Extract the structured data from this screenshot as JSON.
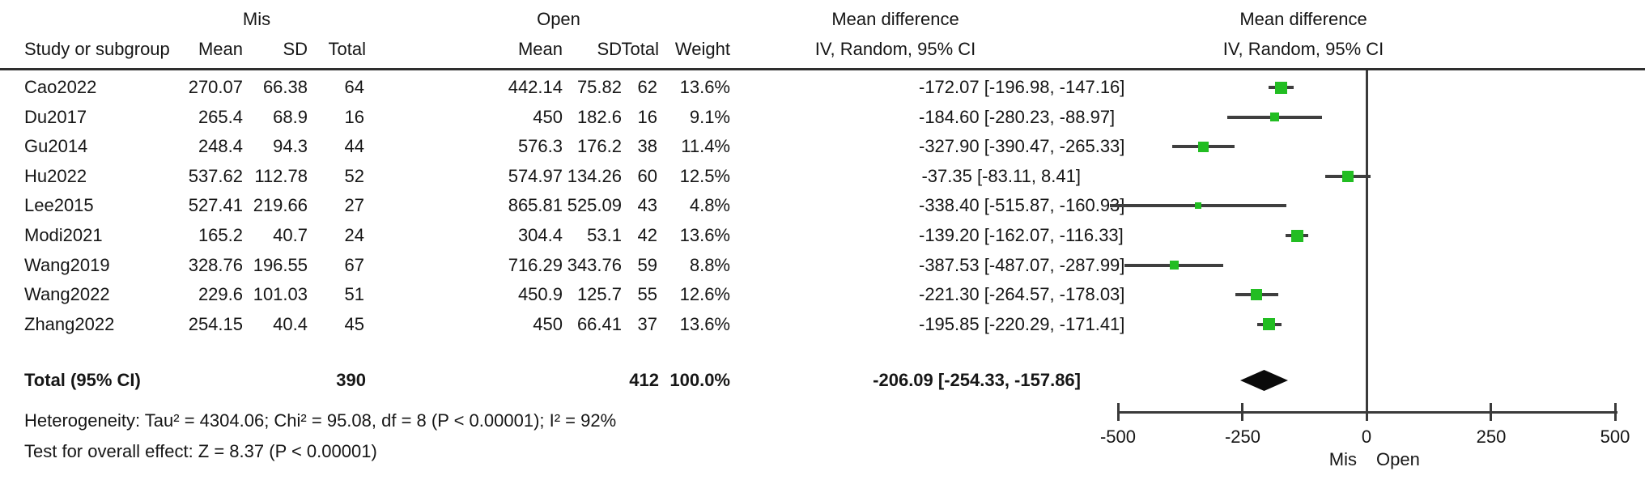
{
  "table": {
    "group_headers": {
      "mis": "Mis",
      "open": "Open"
    },
    "effect_header": {
      "line1": "Mean difference",
      "line2": "IV, Random, 95% CI"
    },
    "plot_header": {
      "line1": "Mean difference",
      "line2": "IV, Random, 95% CI"
    },
    "columns": {
      "study": "Study or subgroup",
      "mean": "Mean",
      "sd": "SD",
      "total": "Total",
      "weight": "Weight"
    }
  },
  "chart_data": {
    "type": "forest",
    "effect_measure": "Mean difference, IV, Random, 95% CI",
    "x_axis": {
      "xlim": [
        -500,
        500
      ],
      "ticks": [
        -500,
        -250,
        0,
        250,
        500
      ],
      "tick_labels": [
        "-500",
        "-250",
        "0",
        "250",
        "500"
      ],
      "left_favours_label": "Mis",
      "right_favours_label": "Open"
    },
    "studies": [
      {
        "study": "Cao2022",
        "mis_mean": "270.07",
        "mis_sd": "66.38",
        "mis_total": "64",
        "open_mean": "442.14",
        "open_sd": "75.82",
        "open_total": "62",
        "weight": "13.6%",
        "ci_label": "-172.07 [-196.98, -147.16]",
        "md": -172.07,
        "ci_low": -196.98,
        "ci_high": -147.16,
        "weight_pct": 13.6
      },
      {
        "study": "Du2017",
        "mis_mean": "265.4",
        "mis_sd": "68.9",
        "mis_total": "16",
        "open_mean": "450",
        "open_sd": "182.6",
        "open_total": "16",
        "weight": "9.1%",
        "ci_label": "-184.60 [-280.23, -88.97]",
        "md": -184.6,
        "ci_low": -280.23,
        "ci_high": -88.97,
        "weight_pct": 9.1
      },
      {
        "study": "Gu2014",
        "mis_mean": "248.4",
        "mis_sd": "94.3",
        "mis_total": "44",
        "open_mean": "576.3",
        "open_sd": "176.2",
        "open_total": "38",
        "weight": "11.4%",
        "ci_label": "-327.90 [-390.47, -265.33]",
        "md": -327.9,
        "ci_low": -390.47,
        "ci_high": -265.33,
        "weight_pct": 11.4
      },
      {
        "study": "Hu2022",
        "mis_mean": "537.62",
        "mis_sd": "112.78",
        "mis_total": "52",
        "open_mean": "574.97",
        "open_sd": "134.26",
        "open_total": "60",
        "weight": "12.5%",
        "ci_label": "-37.35 [-83.11, 8.41]",
        "md": -37.35,
        "ci_low": -83.11,
        "ci_high": 8.41,
        "weight_pct": 12.5
      },
      {
        "study": "Lee2015",
        "mis_mean": "527.41",
        "mis_sd": "219.66",
        "mis_total": "27",
        "open_mean": "865.81",
        "open_sd": "525.09",
        "open_total": "43",
        "weight": "4.8%",
        "ci_label": "-338.40 [-515.87, -160.93]",
        "md": -338.4,
        "ci_low": -515.87,
        "ci_high": -160.93,
        "weight_pct": 4.8
      },
      {
        "study": "Modi2021",
        "mis_mean": "165.2",
        "mis_sd": "40.7",
        "mis_total": "24",
        "open_mean": "304.4",
        "open_sd": "53.1",
        "open_total": "42",
        "weight": "13.6%",
        "ci_label": "-139.20 [-162.07, -116.33]",
        "md": -139.2,
        "ci_low": -162.07,
        "ci_high": -116.33,
        "weight_pct": 13.6
      },
      {
        "study": "Wang2019",
        "mis_mean": "328.76",
        "mis_sd": "196.55",
        "mis_total": "67",
        "open_mean": "716.29",
        "open_sd": "343.76",
        "open_total": "59",
        "weight": "8.8%",
        "ci_label": "-387.53 [-487.07, -287.99]",
        "md": -387.53,
        "ci_low": -487.07,
        "ci_high": -287.99,
        "weight_pct": 8.8
      },
      {
        "study": "Wang2022",
        "mis_mean": "229.6",
        "mis_sd": "101.03",
        "mis_total": "51",
        "open_mean": "450.9",
        "open_sd": "125.7",
        "open_total": "55",
        "weight": "12.6%",
        "ci_label": "-221.30 [-264.57, -178.03]",
        "md": -221.3,
        "ci_low": -264.57,
        "ci_high": -178.03,
        "weight_pct": 12.6
      },
      {
        "study": "Zhang2022",
        "mis_mean": "254.15",
        "mis_sd": "40.4",
        "mis_total": "45",
        "open_mean": "450",
        "open_sd": "66.41",
        "open_total": "37",
        "weight": "13.6%",
        "ci_label": "-195.85 [-220.29, -171.41]",
        "md": -195.85,
        "ci_low": -220.29,
        "ci_high": -171.41,
        "weight_pct": 13.6
      }
    ],
    "total": {
      "label": "Total (95% CI)",
      "mis_total": "390",
      "open_total": "412",
      "weight": "100.0%",
      "ci_label": "-206.09 [-254.33, -157.86]",
      "md": -206.09,
      "ci_low": -254.33,
      "ci_high": -157.86
    }
  },
  "footnotes": {
    "heterogeneity": "Heterogeneity: Tau² = 4304.06; Chi² = 95.08, df = 8 (P < 0.00001); I² = 92%",
    "overall_effect": "Test for overall effect: Z = 8.37 (P < 0.00001)"
  },
  "colors": {
    "marker_green": "#22bd22",
    "ci_line": "#3f3f3f",
    "diamond": "#0a0a0a",
    "axis": "#3a3a3a",
    "text": "#161616"
  }
}
